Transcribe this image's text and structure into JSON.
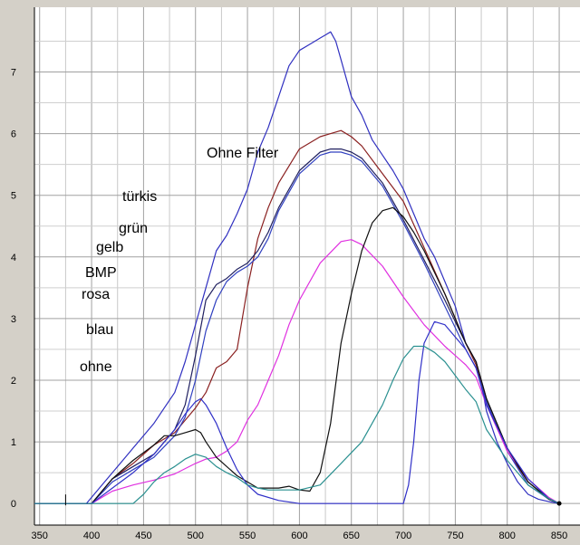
{
  "chart_data": {
    "type": "line",
    "title": "",
    "xlabel": "",
    "ylabel": "",
    "xlim": [
      345,
      870
    ],
    "ylim": [
      -0.35,
      8.05
    ],
    "x_ticks": [
      350,
      400,
      450,
      500,
      550,
      600,
      650,
      700,
      750,
      800,
      850
    ],
    "y_ticks": [
      0,
      1,
      2,
      3,
      4,
      5,
      6,
      7
    ],
    "grid": true,
    "background": "#ffffff",
    "grid_color": "#a0a0a0",
    "labels": [
      "Ohne Filter",
      "türkis",
      "grün",
      "gelb",
      "BMP",
      "rosa",
      "blau",
      "ohne"
    ],
    "series": [
      {
        "color": "#3030c0",
        "x": [
          345,
          395,
          410,
          420,
          430,
          440,
          450,
          460,
          470,
          480,
          490,
          500,
          510,
          520,
          530,
          540,
          550,
          560,
          570,
          580,
          590,
          600,
          610,
          620,
          625,
          630,
          635,
          640,
          645,
          650,
          660,
          670,
          680,
          690,
          700,
          710,
          720,
          730,
          740,
          750,
          760,
          770,
          775,
          780,
          790,
          800,
          810,
          820,
          830,
          840,
          850
        ],
        "y": [
          0,
          0,
          0.3,
          0.5,
          0.7,
          0.9,
          1.1,
          1.3,
          1.55,
          1.8,
          2.3,
          2.9,
          3.5,
          4.1,
          4.35,
          4.7,
          5.1,
          5.7,
          6.1,
          6.6,
          7.1,
          7.35,
          7.45,
          7.55,
          7.6,
          7.65,
          7.5,
          7.2,
          6.9,
          6.6,
          6.3,
          5.9,
          5.65,
          5.4,
          5.1,
          4.7,
          4.3,
          4.0,
          3.6,
          3.2,
          2.6,
          2.3,
          1.95,
          1.5,
          1.0,
          0.65,
          0.35,
          0.15,
          0.07,
          0.03,
          0
        ]
      },
      {
        "color": "#8a2020",
        "x": [
          345,
          400,
          420,
          440,
          460,
          480,
          500,
          510,
          520,
          530,
          540,
          550,
          560,
          570,
          580,
          600,
          620,
          630,
          640,
          650,
          660,
          680,
          700,
          720,
          740,
          760,
          770,
          780,
          800,
          820,
          840,
          850
        ],
        "y": [
          0,
          0,
          0.4,
          0.65,
          0.95,
          1.15,
          1.55,
          1.8,
          2.2,
          2.3,
          2.5,
          3.5,
          4.3,
          4.8,
          5.2,
          5.75,
          5.95,
          6.0,
          6.05,
          5.95,
          5.8,
          5.35,
          4.9,
          4.15,
          3.4,
          2.6,
          2.25,
          1.65,
          0.85,
          0.35,
          0.07,
          0
        ]
      },
      {
        "color": "#202060",
        "x": [
          345,
          400,
          420,
          440,
          460,
          480,
          490,
          500,
          510,
          520,
          530,
          540,
          550,
          560,
          570,
          580,
          600,
          620,
          630,
          640,
          650,
          660,
          680,
          700,
          720,
          740,
          760,
          770,
          780,
          800,
          820,
          840,
          850
        ],
        "y": [
          0,
          0,
          0.4,
          0.6,
          0.8,
          1.2,
          1.6,
          2.4,
          3.3,
          3.55,
          3.65,
          3.8,
          3.9,
          4.1,
          4.4,
          4.8,
          5.4,
          5.7,
          5.75,
          5.75,
          5.7,
          5.6,
          5.2,
          4.6,
          3.95,
          3.3,
          2.6,
          2.3,
          1.7,
          0.9,
          0.35,
          0.08,
          0
        ]
      },
      {
        "color": "#3040c0",
        "x": [
          345,
          400,
          420,
          440,
          460,
          480,
          490,
          500,
          510,
          520,
          530,
          540,
          550,
          560,
          570,
          580,
          600,
          620,
          630,
          640,
          650,
          660,
          680,
          700,
          720,
          740,
          760,
          770,
          780,
          800,
          820,
          840,
          850
        ],
        "y": [
          0,
          0,
          0.35,
          0.55,
          0.75,
          1.1,
          1.4,
          2.0,
          2.8,
          3.3,
          3.6,
          3.75,
          3.85,
          4.0,
          4.3,
          4.75,
          5.35,
          5.65,
          5.7,
          5.7,
          5.65,
          5.55,
          5.15,
          4.55,
          3.9,
          3.2,
          2.5,
          2.2,
          1.65,
          0.85,
          0.3,
          0.07,
          0
        ]
      },
      {
        "color": "#e030e0",
        "x": [
          345,
          400,
          420,
          440,
          460,
          480,
          500,
          510,
          520,
          530,
          540,
          550,
          560,
          570,
          580,
          590,
          600,
          620,
          640,
          650,
          660,
          680,
          700,
          720,
          740,
          760,
          770,
          780,
          800,
          820,
          840,
          850
        ],
        "y": [
          0,
          0,
          0.2,
          0.3,
          0.38,
          0.48,
          0.65,
          0.72,
          0.75,
          0.85,
          1.0,
          1.35,
          1.6,
          2.0,
          2.4,
          2.9,
          3.3,
          3.9,
          4.25,
          4.28,
          4.2,
          3.85,
          3.35,
          2.9,
          2.55,
          2.25,
          2.05,
          1.6,
          0.85,
          0.4,
          0.1,
          0
        ]
      },
      {
        "color": "#101010",
        "x": [
          345,
          400,
          420,
          440,
          460,
          470,
          480,
          490,
          500,
          505,
          510,
          520,
          540,
          560,
          580,
          590,
          600,
          610,
          620,
          630,
          640,
          650,
          660,
          670,
          680,
          690,
          700,
          710,
          720,
          740,
          760,
          770,
          780,
          800,
          820,
          840,
          850
        ],
        "y": [
          0,
          0,
          0.4,
          0.7,
          0.95,
          1.1,
          1.1,
          1.15,
          1.2,
          1.15,
          1.0,
          0.75,
          0.45,
          0.25,
          0.25,
          0.28,
          0.22,
          0.2,
          0.5,
          1.3,
          2.6,
          3.4,
          4.1,
          4.55,
          4.75,
          4.8,
          4.65,
          4.4,
          4.1,
          3.4,
          2.6,
          2.3,
          1.7,
          0.9,
          0.35,
          0.07,
          0
        ]
      },
      {
        "color": "#3030c8",
        "x": [
          345,
          400,
          420,
          440,
          460,
          480,
          490,
          500,
          505,
          510,
          520,
          530,
          540,
          550,
          560,
          580,
          600,
          620,
          640,
          660,
          680,
          700,
          705,
          710,
          715,
          720,
          730,
          740,
          760,
          770,
          780,
          800,
          820,
          840,
          850
        ],
        "y": [
          0,
          0,
          0.25,
          0.5,
          0.8,
          1.2,
          1.45,
          1.65,
          1.7,
          1.6,
          1.3,
          0.9,
          0.55,
          0.3,
          0.15,
          0.05,
          0,
          0,
          0,
          0,
          0,
          0,
          0.3,
          1.0,
          2.0,
          2.6,
          2.95,
          2.9,
          2.5,
          2.2,
          1.6,
          0.9,
          0.4,
          0.08,
          0
        ]
      },
      {
        "color": "#2a9090",
        "x": [
          345,
          440,
          450,
          460,
          470,
          480,
          490,
          500,
          510,
          520,
          530,
          540,
          550,
          560,
          570,
          580,
          600,
          620,
          640,
          660,
          680,
          690,
          700,
          710,
          720,
          730,
          740,
          760,
          770,
          780,
          800,
          820,
          840,
          850
        ],
        "y": [
          0,
          0,
          0.15,
          0.35,
          0.5,
          0.6,
          0.72,
          0.8,
          0.75,
          0.6,
          0.5,
          0.42,
          0.3,
          0.25,
          0.22,
          0.22,
          0.22,
          0.3,
          0.65,
          1.0,
          1.6,
          2.0,
          2.35,
          2.55,
          2.55,
          2.45,
          2.3,
          1.85,
          1.65,
          1.2,
          0.7,
          0.3,
          0.08,
          0
        ]
      }
    ]
  }
}
